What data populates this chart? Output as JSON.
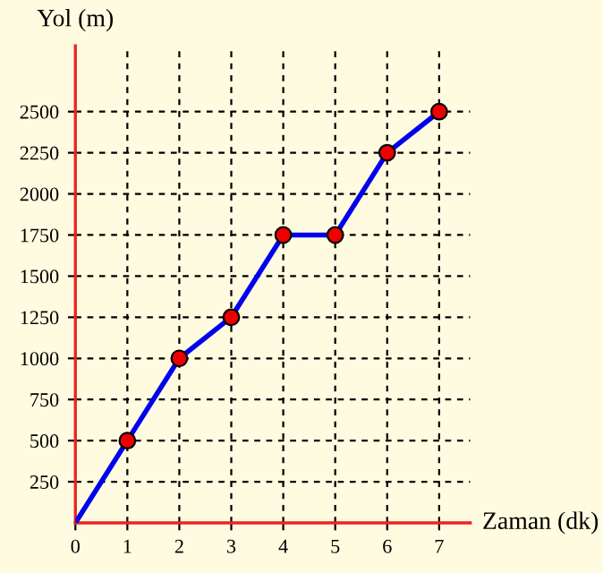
{
  "chart_data": {
    "type": "line",
    "xlabel": "Zaman (dk)",
    "ylabel": "Yol (m)",
    "x": [
      0,
      1,
      2,
      3,
      4,
      5,
      6,
      7
    ],
    "series": [
      {
        "color": "#0000ee",
        "marker": "none",
        "values": [
          0,
          500,
          1000,
          1250,
          1750,
          1750,
          2250,
          2500
        ]
      },
      {
        "type": "scatter",
        "color": "#ee0000",
        "marker": "circle",
        "x": [
          1,
          2,
          3,
          4,
          5,
          6,
          7
        ],
        "values": [
          500,
          1000,
          1250,
          1750,
          1750,
          2250,
          2500
        ]
      }
    ],
    "xlim": [
      0,
      7.6
    ],
    "ylim": [
      0,
      2900
    ],
    "xticks": [
      0,
      1,
      2,
      3,
      4,
      5,
      6,
      7
    ],
    "yticks": [
      250,
      500,
      750,
      1000,
      1250,
      1500,
      1750,
      2000,
      2250,
      2500
    ],
    "grid": true,
    "line_style": "solid"
  }
}
